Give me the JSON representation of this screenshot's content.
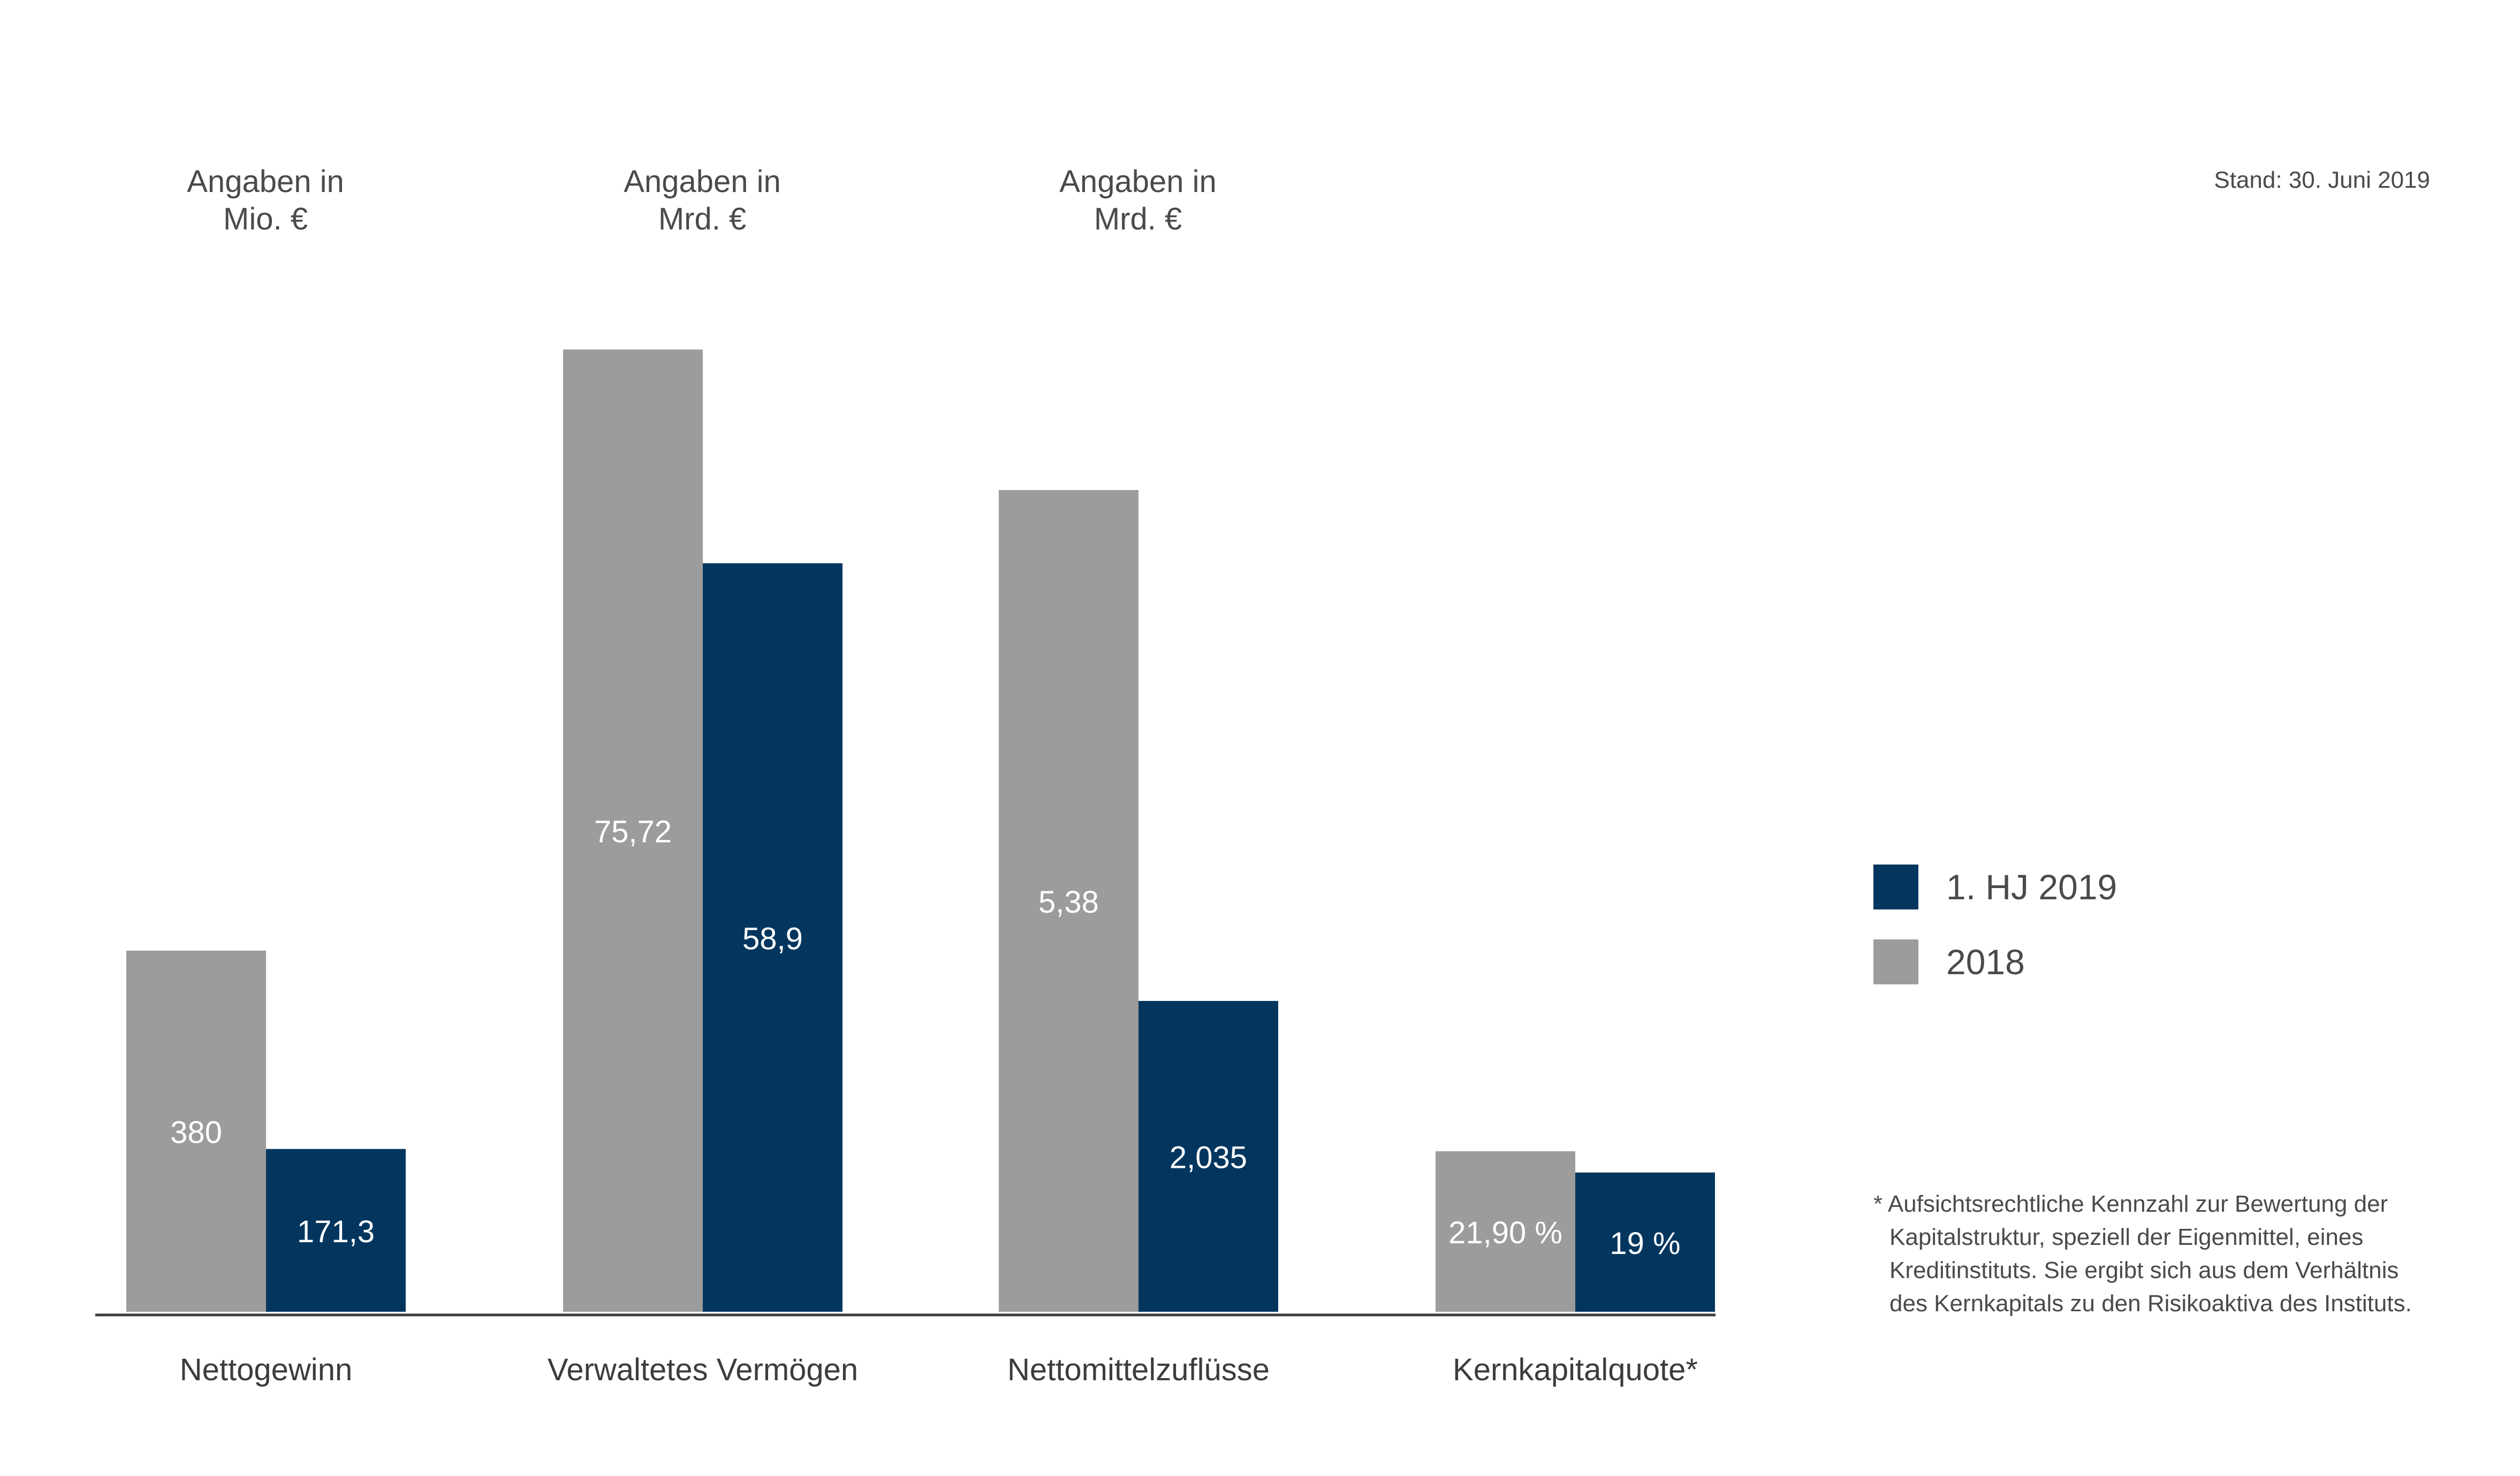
{
  "stand": "Stand: 30. Juni 2019",
  "units": [
    {
      "line1": "Angaben in",
      "line2": "Mio. €"
    },
    {
      "line1": "Angaben in",
      "line2": "Mrd. €"
    },
    {
      "line1": "Angaben in",
      "line2": "Mrd. €"
    }
  ],
  "legend": [
    {
      "label": "1. HJ 2019",
      "color": "#02365e"
    },
    {
      "label": "2018",
      "color": "#9c9c9c"
    }
  ],
  "footnote": [
    "* Aufsichtsrechtliche Kennzahl zur Bewertung der",
    "Kapitalstruktur, speziell der Eigenmittel, eines",
    "Kreditinstituts. Sie ergibt sich aus dem Verhältnis",
    "des Kernkapitals zu den Risikoaktiva des Instituts."
  ],
  "colors": {
    "2018": "#9c9c9c",
    "hj2019": "#02365e",
    "axis": "#3c3c3c",
    "label_on_bar": "#ffffff"
  },
  "chart_data": {
    "type": "bar",
    "title": "",
    "xlabel": "",
    "ylabel": "",
    "categories": [
      "Nettogewinn",
      "Verwaltetes Vermögen",
      "Nettomittelzuflüsse",
      "Kernkapitalquote*"
    ],
    "series": [
      {
        "name": "2018",
        "values": [
          380,
          75.72,
          5.38,
          21.9
        ],
        "labels": [
          "380",
          "75,72",
          "5,38",
          "21,90 %"
        ]
      },
      {
        "name": "1. HJ 2019",
        "values": [
          171.3,
          58.9,
          2.035,
          19
        ],
        "labels": [
          "171,3",
          "58,9",
          "2,035",
          "19 %"
        ]
      }
    ],
    "units": [
      "Mio. €",
      "Mrd. €",
      "Mrd. €",
      "%"
    ],
    "scale_note": "each category is drawn on its own independent scale",
    "ylim": [
      0,
      null
    ],
    "grid": false,
    "legend_position": "right"
  }
}
